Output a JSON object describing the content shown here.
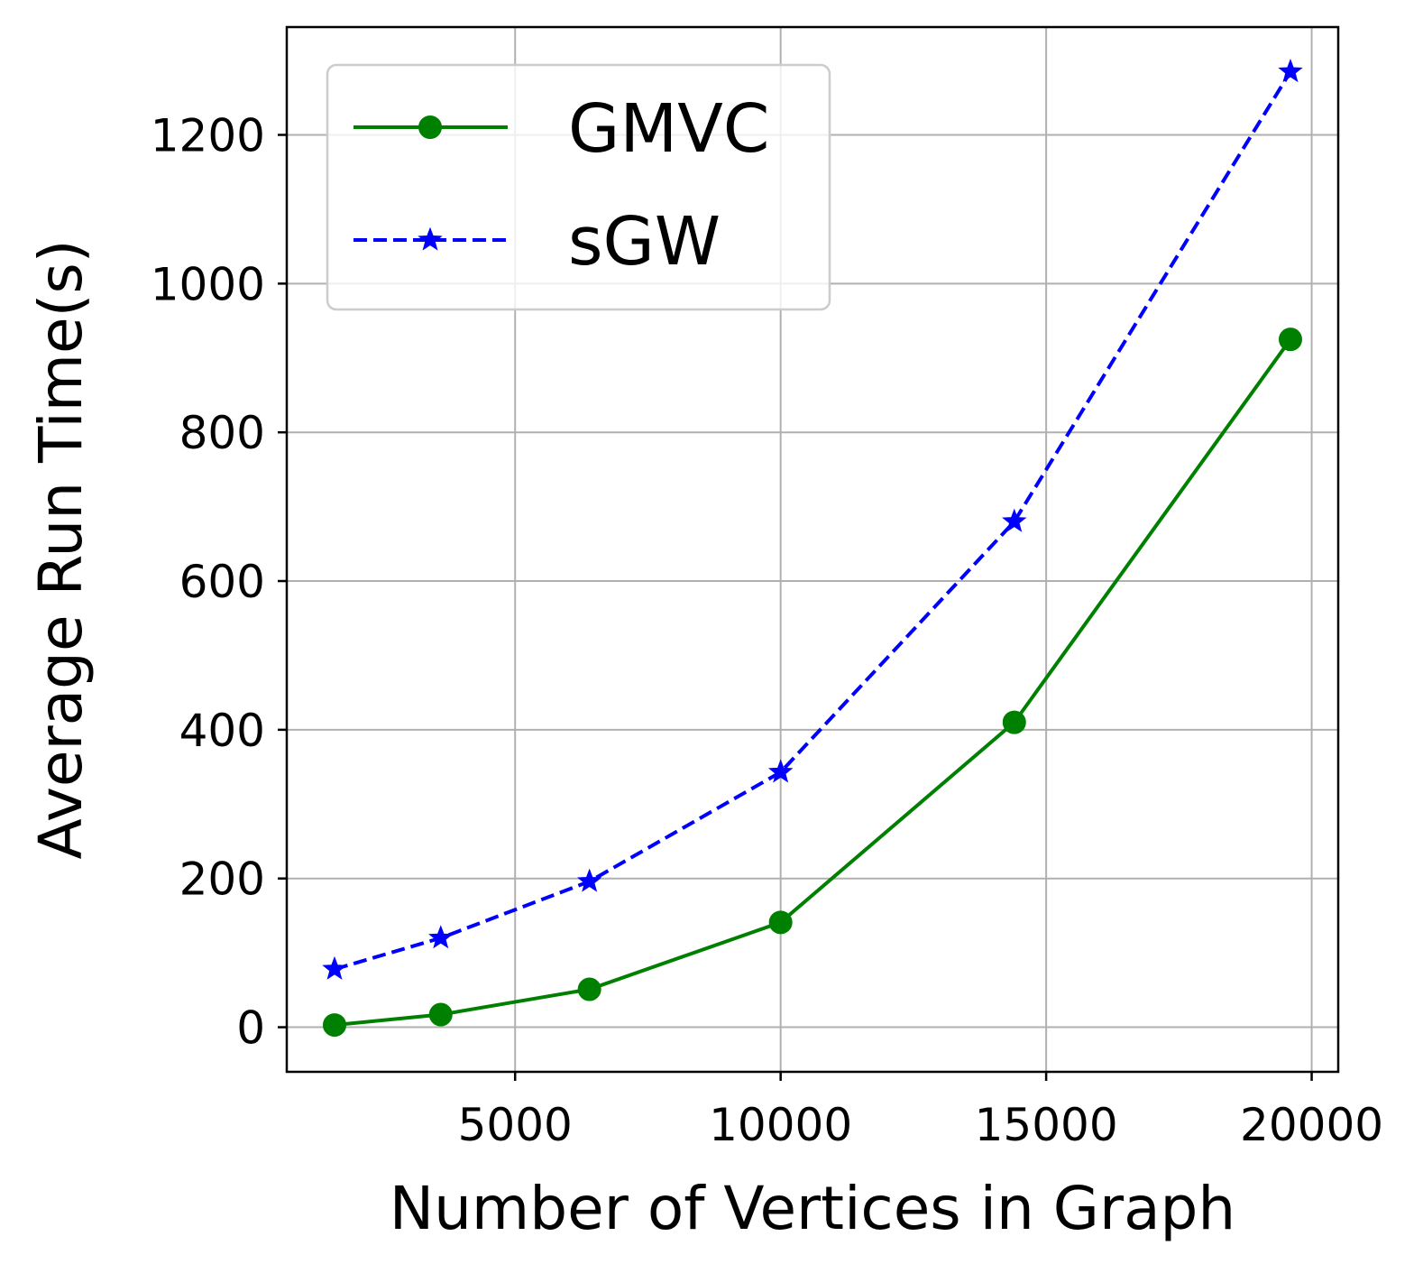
{
  "chart_data": {
    "type": "line",
    "title": "",
    "xlabel": "Number of Vertices in Graph",
    "ylabel": "Average Run Time(s)",
    "xlim": [
      700,
      20500
    ],
    "ylim": [
      -60,
      1345
    ],
    "xticks": [
      5000,
      10000,
      15000,
      20000
    ],
    "yticks": [
      0,
      200,
      400,
      600,
      800,
      1000,
      1200
    ],
    "grid": true,
    "legend_position": "top-left",
    "series": [
      {
        "name": "GMVC",
        "color": "#008000",
        "line_style": "solid",
        "marker": "circle",
        "x": [
          1600,
          3600,
          6400,
          10000,
          14400,
          19600
        ],
        "y": [
          3,
          17,
          51,
          141,
          410,
          925
        ]
      },
      {
        "name": "sGW",
        "color": "#0000ff",
        "line_style": "dashed",
        "marker": "star",
        "x": [
          1600,
          3600,
          6400,
          10000,
          14400,
          19600
        ],
        "y": [
          78,
          120,
          196,
          343,
          680,
          1285
        ]
      }
    ]
  }
}
